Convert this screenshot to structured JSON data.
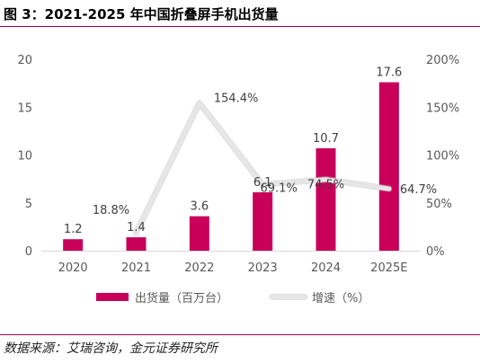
{
  "page": {
    "title": "图 3：2021-2025 年中国折叠屏手机出货量",
    "source": "数据来源：艾瑞咨询，金元证券研究所"
  },
  "colors": {
    "accent": "#b5003f",
    "bar": "#c8005a",
    "line": "#e6e6e6",
    "axis_text": "#595959"
  },
  "chart_data": {
    "type": "bar",
    "categories": [
      "2020",
      "2021",
      "2022",
      "2023",
      "2024",
      "2025E"
    ],
    "series": [
      {
        "name": "出货量（百万台）",
        "type": "bar",
        "axis": "left",
        "values": [
          1.2,
          1.4,
          3.6,
          6.1,
          10.7,
          17.6
        ],
        "labels": [
          "1.2",
          "1.4",
          "3.6",
          "6.1",
          "10.7",
          "17.6"
        ]
      },
      {
        "name": "增速（%）",
        "type": "line",
        "axis": "right",
        "values": [
          null,
          18.8,
          154.4,
          69.1,
          74.5,
          64.7
        ],
        "labels": [
          "",
          "18.8%",
          "154.4%",
          "69.1%",
          "74.5%",
          "64.7%"
        ]
      }
    ],
    "y_left": {
      "ticks": [
        "0",
        "5",
        "10",
        "15",
        "20"
      ],
      "ylim": [
        0,
        20
      ]
    },
    "y_right": {
      "ticks": [
        "0%",
        "50%",
        "100%",
        "150%",
        "200%"
      ],
      "ylim": [
        0,
        200
      ]
    },
    "grid": false,
    "legend_position": "bottom"
  }
}
